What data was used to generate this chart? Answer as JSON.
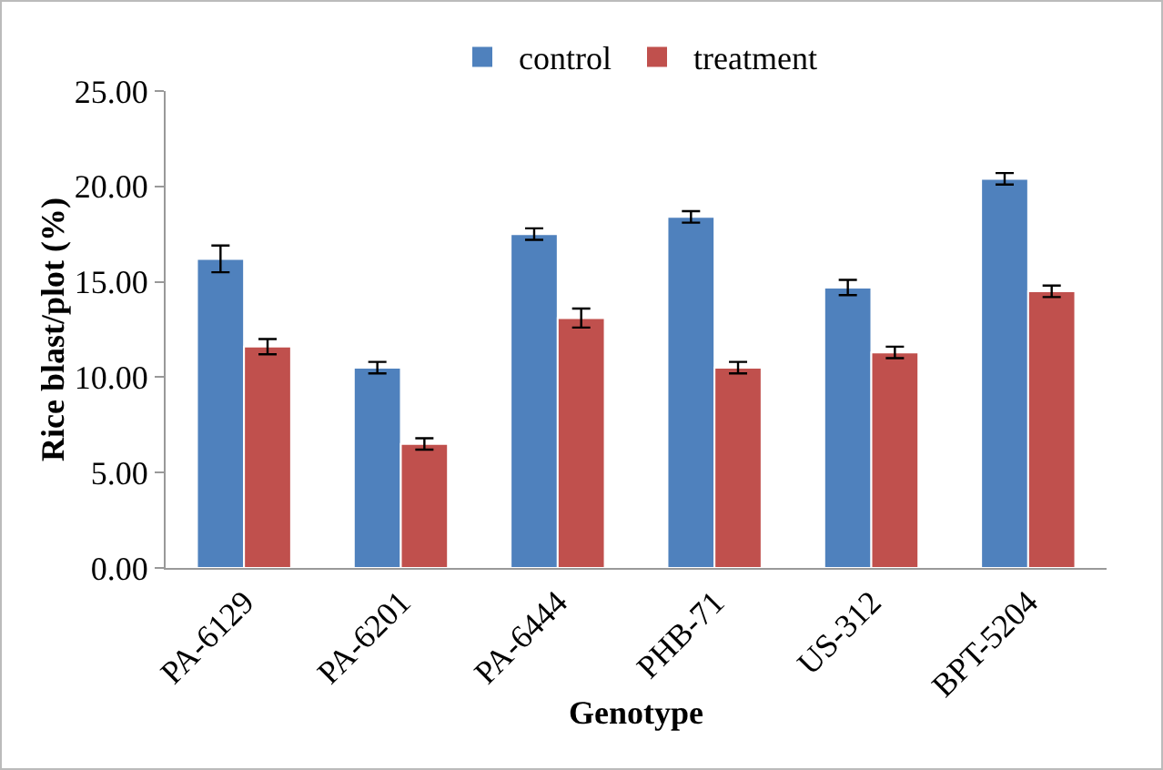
{
  "chart_data": {
    "type": "bar",
    "xlabel": "Genotype",
    "ylabel": "Rice blast/plot (%)",
    "categories": [
      "PA-6129",
      "PA-6201",
      "PA-6444",
      "PHB-71",
      "US-312",
      "BPT-5204"
    ],
    "series": [
      {
        "name": "control",
        "color": "#4f81bd",
        "values": [
          16.2,
          10.5,
          17.5,
          18.4,
          14.7,
          20.4
        ],
        "errors": [
          0.7,
          0.3,
          0.3,
          0.3,
          0.4,
          0.3
        ]
      },
      {
        "name": "treatment",
        "color": "#c0504d",
        "values": [
          11.6,
          6.5,
          13.1,
          10.5,
          11.3,
          14.5
        ],
        "errors": [
          0.4,
          0.3,
          0.5,
          0.3,
          0.3,
          0.3
        ]
      }
    ],
    "ylim": [
      0,
      25
    ],
    "yticks": [
      {
        "value": 0,
        "label": "0.00"
      },
      {
        "value": 5,
        "label": "5.00"
      },
      {
        "value": 10,
        "label": "10.00"
      },
      {
        "value": 15,
        "label": "15.00"
      },
      {
        "value": 20,
        "label": "20.00"
      },
      {
        "value": 25,
        "label": "25.00"
      }
    ],
    "grid": false,
    "legend": "top"
  }
}
